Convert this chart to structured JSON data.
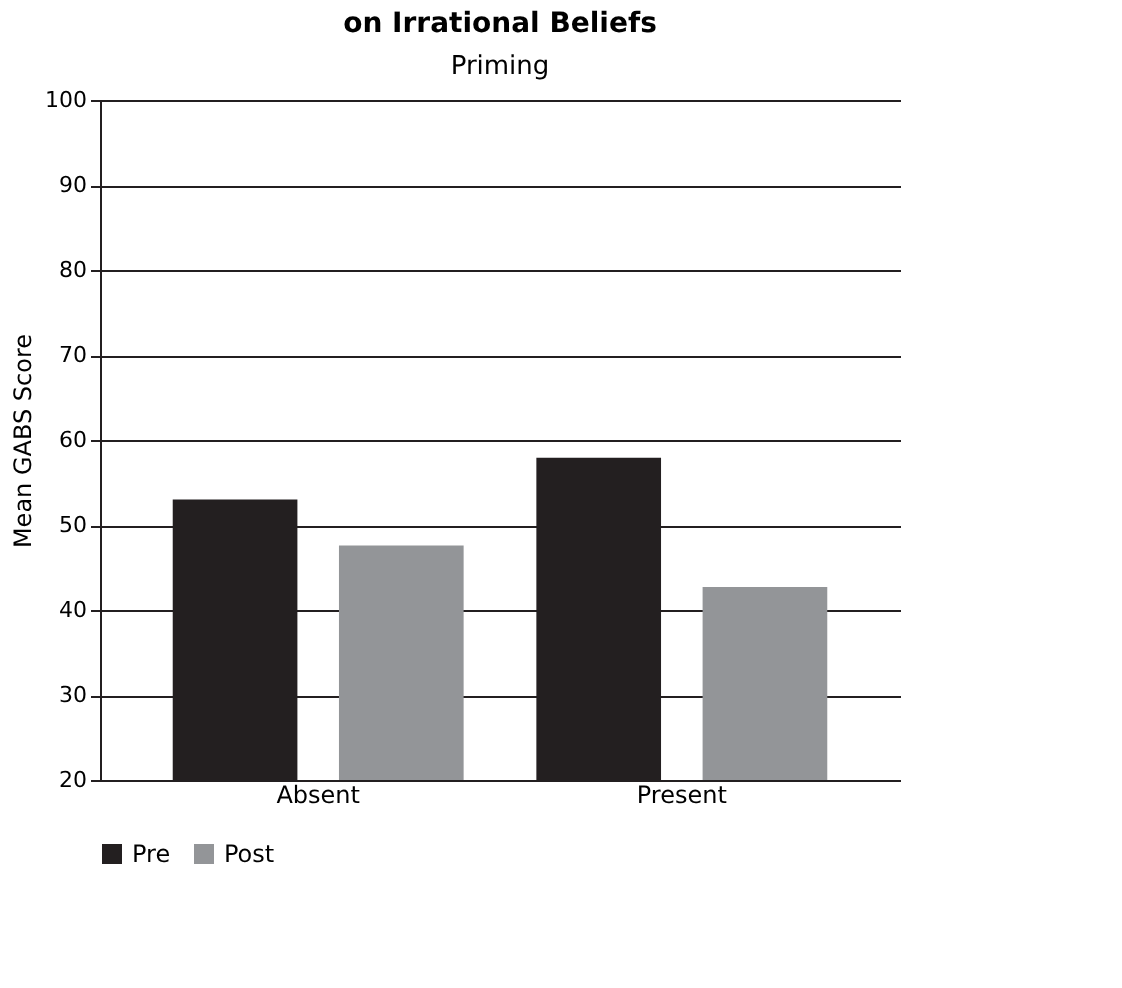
{
  "chart_data": {
    "type": "bar",
    "title": "on Irrational Beliefs",
    "subtitle": "Priming",
    "ylabel": "Mean GABS Score",
    "categories": [
      "Absent",
      "Present"
    ],
    "series": [
      {
        "name": "Pre",
        "color": "#231f20",
        "values": [
          53,
          57.9
        ]
      },
      {
        "name": "Post",
        "color": "#939598",
        "values": [
          47.6,
          42.7
        ]
      }
    ],
    "ylim": [
      20,
      100
    ],
    "yticks": [
      20,
      30,
      40,
      50,
      60,
      70,
      80,
      90,
      100
    ],
    "grid": "y",
    "legend": "bottom"
  }
}
